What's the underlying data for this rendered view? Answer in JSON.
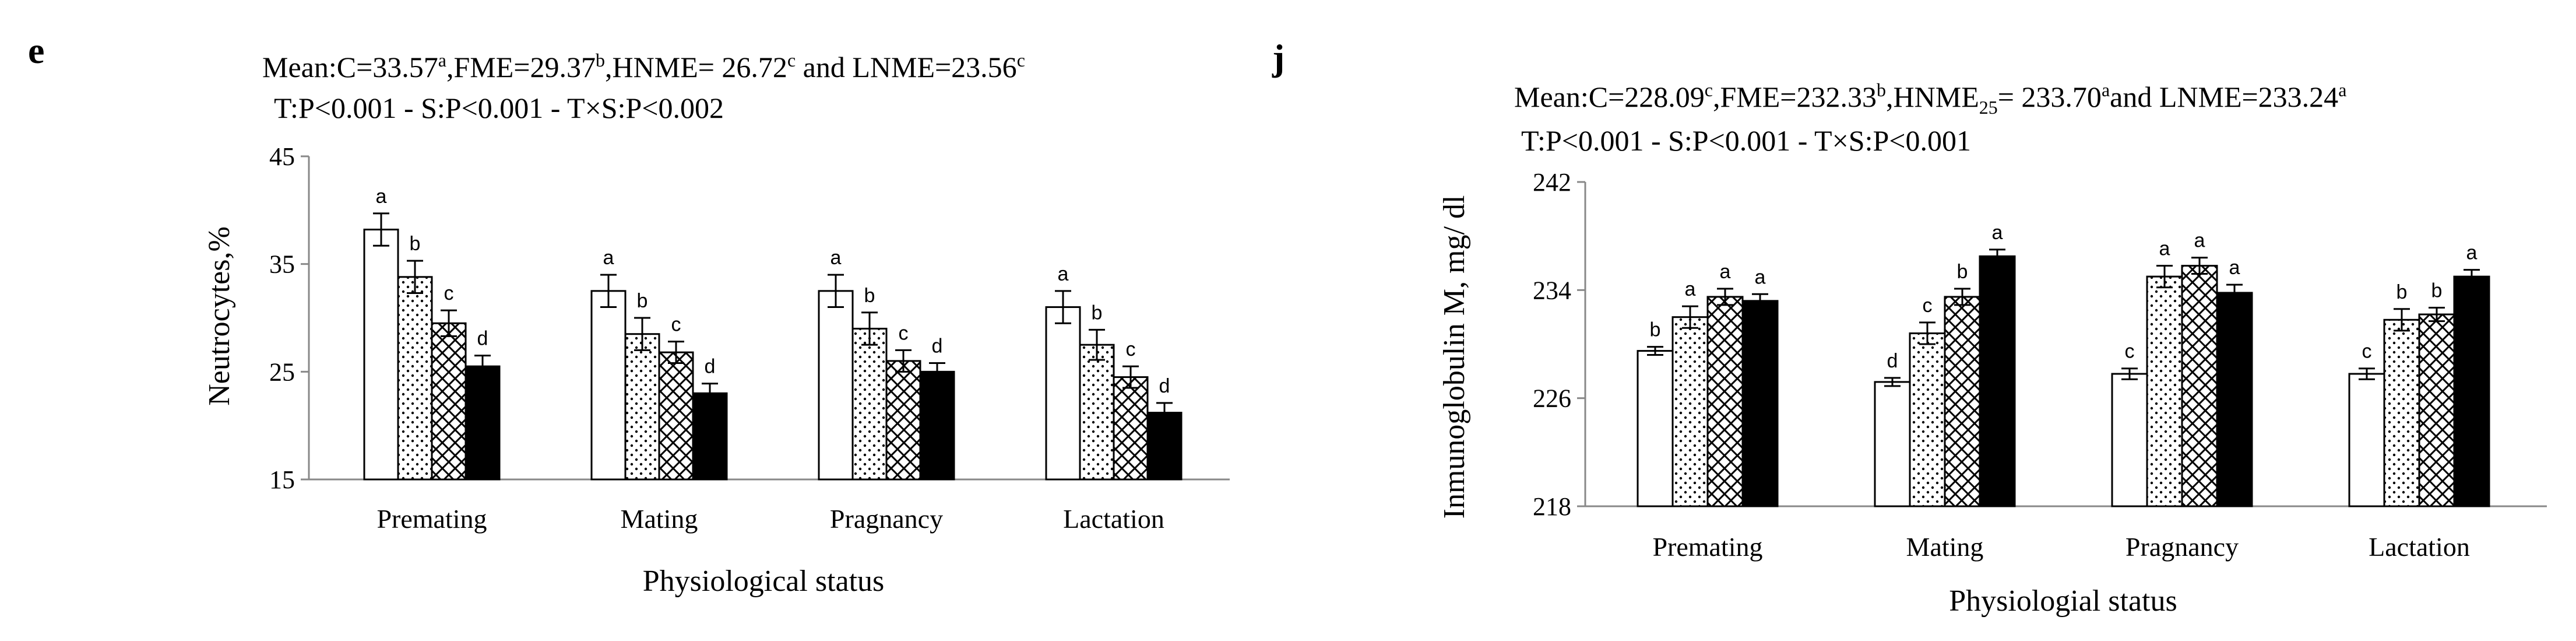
{
  "chart_data": [
    {
      "type": "bar",
      "panel": "e",
      "mean_line": [
        {
          "t": "Mean:C=33.57"
        },
        {
          "t": "a",
          "s": "sup"
        },
        {
          "t": ",FME=29.37"
        },
        {
          "t": "b",
          "s": "sup"
        },
        {
          "t": ",HNME= 26.72"
        },
        {
          "t": "c",
          "s": "sup"
        },
        {
          "t": " and LNME=23.56"
        },
        {
          "t": "c",
          "s": "sup"
        }
      ],
      "p_line": "T:P<0.001 - S:P<0.001 - T×S:P<0.002",
      "xlabel": "Physiological status",
      "ylabel": "Neutrocytes,%",
      "ylim": [
        15,
        45
      ],
      "yticks": [
        "15",
        "25",
        "35",
        "45"
      ],
      "categories": [
        "Premating",
        "Mating",
        "Pragnancy",
        "Lactation"
      ],
      "series": [
        {
          "pattern": "white",
          "values": [
            38.2,
            32.5,
            32.5,
            31.0
          ],
          "err": [
            1.5,
            1.5,
            1.5,
            1.5
          ],
          "letters": [
            "a",
            "a",
            "a",
            "a"
          ]
        },
        {
          "pattern": "dots",
          "values": [
            33.8,
            28.5,
            29.0,
            27.5
          ],
          "err": [
            1.5,
            1.5,
            1.5,
            1.4
          ],
          "letters": [
            "b",
            "b",
            "b",
            "b"
          ]
        },
        {
          "pattern": "hatch",
          "values": [
            29.5,
            26.8,
            26.0,
            24.5
          ],
          "err": [
            1.2,
            1.0,
            1.0,
            1.0
          ],
          "letters": [
            "c",
            "c",
            "c",
            "c"
          ]
        },
        {
          "pattern": "black",
          "values": [
            25.5,
            23.0,
            25.0,
            21.2
          ],
          "err": [
            1.0,
            0.9,
            0.8,
            0.9
          ],
          "letters": [
            "d",
            "d",
            "d",
            "d"
          ]
        }
      ]
    },
    {
      "type": "bar",
      "panel": "j",
      "mean_line": [
        {
          "t": "Mean:C=228.09"
        },
        {
          "t": "c",
          "s": "sup"
        },
        {
          "t": ",FME=232.33"
        },
        {
          "t": "b",
          "s": "sup"
        },
        {
          "t": ",HNME"
        },
        {
          "t": "25",
          "s": "sub"
        },
        {
          "t": "= 233.70"
        },
        {
          "t": "a",
          "s": "sup"
        },
        {
          "t": "and LNME=233.24"
        },
        {
          "t": "a",
          "s": "sup"
        }
      ],
      "p_line": "T:P<0.001 - S:P<0.001 - T×S:P<0.001",
      "xlabel": "Physiologial status",
      "ylabel": "Inmunoglobulin M, mg/ dl",
      "ylim": [
        218,
        242
      ],
      "yticks": [
        "218",
        "226",
        "234",
        "242"
      ],
      "categories": [
        "Premating",
        "Mating",
        "Pragnancy",
        "Lactation"
      ],
      "series": [
        {
          "pattern": "white",
          "values": [
            229.5,
            227.2,
            227.8,
            227.8
          ],
          "err": [
            0.3,
            0.3,
            0.4,
            0.4
          ],
          "letters": [
            "b",
            "d",
            "c",
            "c"
          ]
        },
        {
          "pattern": "dots",
          "values": [
            232.0,
            230.8,
            235.0,
            231.8
          ],
          "err": [
            0.8,
            0.8,
            0.8,
            0.8
          ],
          "letters": [
            "a",
            "c",
            "a",
            "b"
          ]
        },
        {
          "pattern": "hatch",
          "values": [
            233.5,
            233.5,
            235.8,
            232.2
          ],
          "err": [
            0.6,
            0.6,
            0.6,
            0.5
          ],
          "letters": [
            "a",
            "b",
            "a",
            "b"
          ]
        },
        {
          "pattern": "black",
          "values": [
            233.2,
            236.5,
            233.8,
            235.0
          ],
          "err": [
            0.5,
            0.5,
            0.6,
            0.5
          ],
          "letters": [
            "a",
            "a",
            "a",
            "a"
          ]
        }
      ]
    }
  ]
}
